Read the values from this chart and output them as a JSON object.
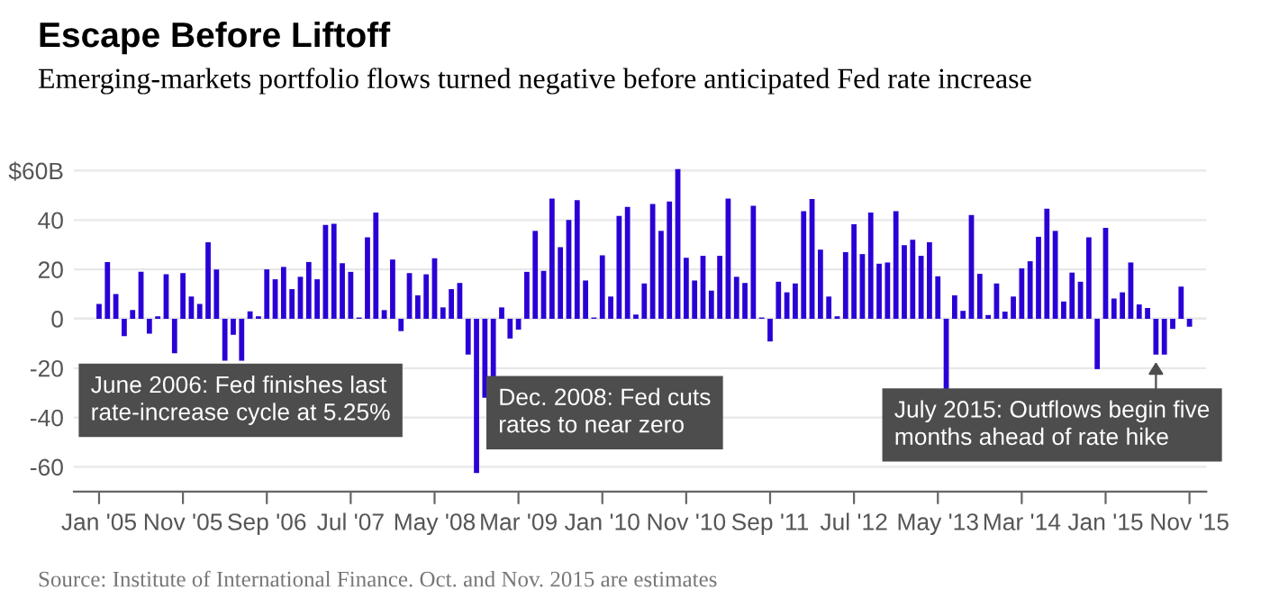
{
  "chart_data": {
    "type": "bar",
    "title": "Escape Before Liftoff",
    "subtitle": "Emerging-markets portfolio flows turned negative before anticipated Fed rate increase",
    "categories": [
      "Jan '05",
      null,
      null,
      null,
      null,
      null,
      null,
      null,
      null,
      null,
      "Nov '05",
      null,
      null,
      null,
      null,
      null,
      null,
      null,
      null,
      null,
      "Sep '06",
      null,
      null,
      null,
      null,
      null,
      null,
      null,
      null,
      null,
      "Jul '07",
      null,
      null,
      null,
      null,
      null,
      null,
      null,
      null,
      null,
      "May '08",
      null,
      null,
      null,
      null,
      null,
      null,
      null,
      null,
      null,
      "Mar '09",
      null,
      null,
      null,
      null,
      null,
      null,
      null,
      null,
      null,
      "Jan '10",
      null,
      null,
      null,
      null,
      null,
      null,
      null,
      null,
      null,
      "Nov '10",
      null,
      null,
      null,
      null,
      null,
      null,
      null,
      null,
      null,
      "Sep '11",
      null,
      null,
      null,
      null,
      null,
      null,
      null,
      null,
      null,
      "Jul '12",
      null,
      null,
      null,
      null,
      null,
      null,
      null,
      null,
      null,
      "May '13",
      null,
      null,
      null,
      null,
      null,
      null,
      null,
      null,
      null,
      "Mar '14",
      null,
      null,
      null,
      null,
      null,
      null,
      null,
      null,
      null,
      "Jan '15",
      null,
      null,
      null,
      null,
      null,
      null,
      null,
      null,
      null,
      "Nov '15"
    ],
    "values": [
      6,
      23,
      10,
      -7,
      3.5,
      19,
      -6,
      1,
      18,
      -14,
      18.5,
      9,
      6,
      31,
      20,
      -17,
      -6.5,
      -17,
      3,
      1,
      20,
      16,
      21,
      12,
      17,
      23,
      16,
      38,
      38.5,
      22.5,
      19,
      0.5,
      33,
      43,
      3.5,
      24,
      -5,
      18.5,
      9.5,
      18,
      24.5,
      4.6,
      12,
      14.5,
      -14.5,
      -62.5,
      -32,
      -24,
      4.6,
      -8,
      -4.4,
      19,
      35.6,
      19.4,
      48.7,
      29,
      40,
      48,
      15.5,
      0.5,
      25.7,
      9,
      41.7,
      45.3,
      1.7,
      14.3,
      46.5,
      35.6,
      47.5,
      60.6,
      24.7,
      15.5,
      25.5,
      11.4,
      25.5,
      48.7,
      17,
      14.5,
      45.8,
      0.5,
      -9.2,
      15,
      10.7,
      14.3,
      43.6,
      48.5,
      28,
      9,
      1,
      27,
      38.3,
      26.2,
      43,
      22.3,
      22.8,
      43.6,
      29.8,
      32,
      25.5,
      31,
      17.2,
      -28.6,
      9.5,
      3.2,
      42,
      18.2,
      1.5,
      14.3,
      2.9,
      9,
      20.4,
      23.3,
      33.2,
      44.6,
      35.6,
      7,
      18.7,
      15,
      33,
      -20.4,
      36.8,
      8.2,
      10.7,
      22.8,
      5.8,
      4.4,
      -14.5,
      -14.5,
      -4.1,
      13,
      -3.2
    ],
    "color": "#2a00d6",
    "ylim": [
      -70,
      62
    ],
    "yticks": [
      -60,
      -40,
      -20,
      0,
      20,
      40,
      {
        "value": 60,
        "label": "$60B"
      }
    ],
    "grid": "y",
    "annotations": [
      "June 2006: Fed finishes last\nrate-increase cycle at 5.25%",
      "Dec. 2008: Fed cuts\nrates to near zero",
      "July 2015: Outflows begin five\nmonths ahead of rate hike",
      "Source: Institute of International Finance. Oct. and Nov. 2015 are estimates"
    ]
  }
}
